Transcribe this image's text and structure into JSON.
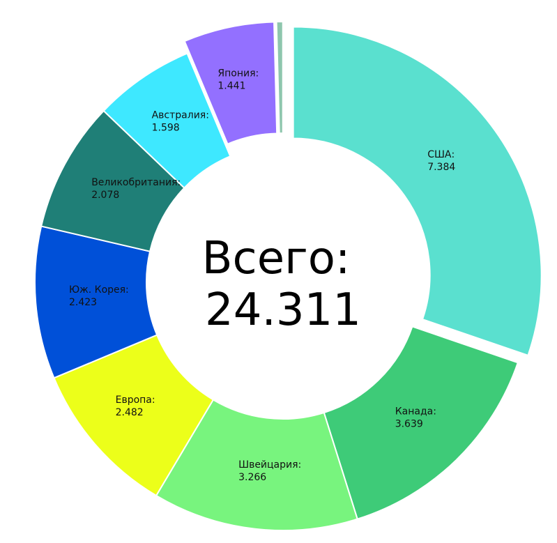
{
  "chart_data": {
    "type": "pie",
    "style": "donut",
    "center_text": {
      "label": "Всего:",
      "value": "24.311"
    },
    "slices": [
      {
        "name": "США",
        "label": "США:",
        "value": 7.384,
        "value_text": "7.384",
        "color": "#5ae0cf",
        "exploded": true
      },
      {
        "name": "Канада",
        "label": "Канада:",
        "value": 3.639,
        "value_text": "3.639",
        "color": "#3ecb78",
        "exploded": false
      },
      {
        "name": "Швейцария",
        "label": "Швейцария:",
        "value": 3.266,
        "value_text": "3.266",
        "color": "#78f47e",
        "exploded": false
      },
      {
        "name": "Европа",
        "label": "Европа:",
        "value": 2.482,
        "value_text": "2.482",
        "color": "#ecff1a",
        "exploded": false
      },
      {
        "name": "Юж. Корея",
        "label": "Юж. Корея:",
        "value": 2.423,
        "value_text": "2.423",
        "color": "#0050d8",
        "exploded": false
      },
      {
        "name": "Великобритания",
        "label": "Великобритания:",
        "value": 2.078,
        "value_text": "2.078",
        "color": "#1f7f77",
        "exploded": false
      },
      {
        "name": "Австралия",
        "label": "Австралия:",
        "value": 1.598,
        "value_text": "1.598",
        "color": "#3ee8ff",
        "exploded": false
      },
      {
        "name": "Япония",
        "label": "Япония:",
        "value": 1.441,
        "value_text": "1.441",
        "color": "#9370ff",
        "exploded": true
      },
      {
        "name": "",
        "label": "",
        "value": 0.1,
        "value_text": "",
        "color": "#8ec6ad",
        "exploded": true
      }
    ]
  }
}
